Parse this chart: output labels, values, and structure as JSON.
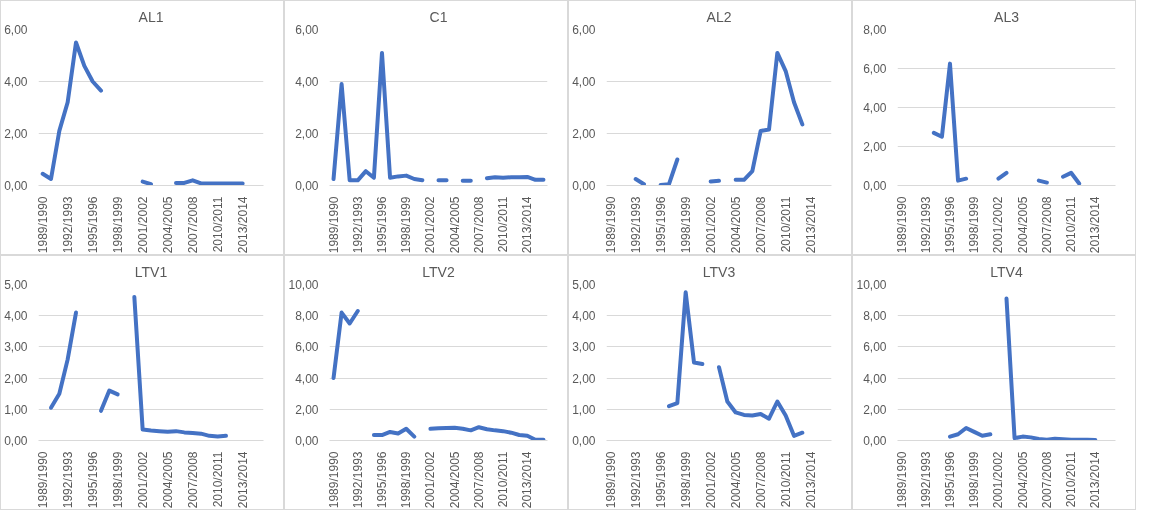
{
  "chart_data": [
    {
      "type": "line",
      "title": "AL1",
      "categories": [
        "1989/1990",
        null,
        null,
        "1992/1993",
        null,
        null,
        "1995/1996",
        null,
        null,
        "1998/1999",
        null,
        null,
        "2001/2002",
        null,
        null,
        "2004/2005",
        null,
        null,
        "2007/2008",
        null,
        null,
        "2010/2011",
        null,
        null,
        "2013/2014",
        null,
        null
      ],
      "values": [
        0.45,
        0.25,
        2.1,
        3.2,
        5.5,
        4.6,
        4.0,
        3.65,
        null,
        null,
        null,
        null,
        0.15,
        0.05,
        null,
        null,
        0.1,
        0.1,
        0.2,
        0.08,
        0.08,
        0.08,
        0.08,
        0.08,
        0.08,
        null,
        null
      ],
      "color": "#4472c4",
      "ylim": [
        0,
        6
      ],
      "yticks": [
        {
          "value": 0,
          "label": "0,00"
        },
        {
          "value": 2,
          "label": "2,00"
        },
        {
          "value": 4,
          "label": "4,00"
        },
        {
          "value": 6,
          "label": "6,00"
        }
      ],
      "grid": "y"
    },
    {
      "type": "line",
      "title": "C1",
      "categories": [
        "1989/1990",
        null,
        null,
        "1992/1993",
        null,
        null,
        "1995/1996",
        null,
        null,
        "1998/1999",
        null,
        null,
        "2001/2002",
        null,
        null,
        "2004/2005",
        null,
        null,
        "2007/2008",
        null,
        null,
        "2010/2011",
        null,
        null,
        "2013/2014",
        null,
        null
      ],
      "values": [
        0.25,
        3.9,
        0.2,
        0.2,
        0.55,
        0.3,
        5.1,
        0.3,
        0.35,
        0.38,
        0.25,
        0.2,
        null,
        0.2,
        0.2,
        null,
        0.18,
        0.18,
        null,
        0.28,
        0.32,
        0.3,
        0.32,
        0.32,
        0.33,
        0.22,
        0.22
      ],
      "color": "#4472c4",
      "ylim": [
        0,
        6
      ],
      "yticks": [
        {
          "value": 0,
          "label": "0,00"
        },
        {
          "value": 2,
          "label": "2,00"
        },
        {
          "value": 4,
          "label": "4,00"
        },
        {
          "value": 6,
          "label": "6,00"
        }
      ],
      "grid": "y"
    },
    {
      "type": "line",
      "title": "AL2",
      "categories": [
        "1989/1990",
        null,
        null,
        "1992/1993",
        null,
        null,
        "1995/1996",
        null,
        null,
        "1998/1999",
        null,
        null,
        "2001/2002",
        null,
        null,
        "2004/2005",
        null,
        null,
        "2007/2008",
        null,
        null,
        "2010/2011",
        null,
        null,
        "2013/2014",
        null,
        null
      ],
      "values": [
        null,
        null,
        null,
        0.25,
        0.05,
        null,
        0.02,
        0.05,
        1.0,
        null,
        null,
        null,
        0.15,
        0.18,
        null,
        0.22,
        0.22,
        0.55,
        2.1,
        2.15,
        5.1,
        4.4,
        3.2,
        2.35,
        null,
        null,
        null
      ],
      "color": "#4472c4",
      "ylim": [
        0,
        6
      ],
      "yticks": [
        {
          "value": 0,
          "label": "0,00"
        },
        {
          "value": 2,
          "label": "2,00"
        },
        {
          "value": 4,
          "label": "4,00"
        },
        {
          "value": 6,
          "label": "6,00"
        }
      ],
      "grid": "y"
    },
    {
      "type": "line",
      "title": "AL3",
      "categories": [
        "1989/1990",
        null,
        null,
        "1992/1993",
        null,
        null,
        "1995/1996",
        null,
        null,
        "1998/1999",
        null,
        null,
        "2001/2002",
        null,
        null,
        "2004/2005",
        null,
        null,
        "2007/2008",
        null,
        null,
        "2010/2011",
        null,
        null,
        "2013/2014",
        null,
        null
      ],
      "values": [
        null,
        null,
        null,
        null,
        2.7,
        2.5,
        6.25,
        0.25,
        0.35,
        null,
        null,
        null,
        0.35,
        0.65,
        null,
        null,
        null,
        0.25,
        0.15,
        null,
        0.45,
        0.65,
        0.1,
        null,
        null,
        null,
        null
      ],
      "color": "#4472c4",
      "ylim": [
        0,
        8
      ],
      "yticks": [
        {
          "value": 0,
          "label": "0,00"
        },
        {
          "value": 2,
          "label": "2,00"
        },
        {
          "value": 4,
          "label": "4,00"
        },
        {
          "value": 6,
          "label": "6,00"
        },
        {
          "value": 8,
          "label": "8,00"
        }
      ],
      "grid": "y"
    },
    {
      "type": "line",
      "title": "LTV1",
      "categories": [
        "1989/1990",
        null,
        null,
        "1992/1993",
        null,
        null,
        "1995/1996",
        null,
        null,
        "1998/1999",
        null,
        null,
        "2001/2002",
        null,
        null,
        "2004/2005",
        null,
        null,
        "2007/2008",
        null,
        null,
        "2010/2011",
        null,
        null,
        "2013/2014",
        null,
        null
      ],
      "values": [
        null,
        1.05,
        1.5,
        2.6,
        4.1,
        null,
        null,
        0.95,
        1.6,
        1.48,
        null,
        4.6,
        0.35,
        0.32,
        0.3,
        0.28,
        0.3,
        0.26,
        0.24,
        0.22,
        0.15,
        0.13,
        0.15,
        null,
        null,
        null,
        null
      ],
      "color": "#4472c4",
      "ylim": [
        0,
        5
      ],
      "yticks": [
        {
          "value": 0,
          "label": "0,00"
        },
        {
          "value": 1,
          "label": "1,00"
        },
        {
          "value": 2,
          "label": "2,00"
        },
        {
          "value": 3,
          "label": "3,00"
        },
        {
          "value": 4,
          "label": "4,00"
        },
        {
          "value": 5,
          "label": "5,00"
        }
      ],
      "grid": "y"
    },
    {
      "type": "line",
      "title": "LTV2",
      "categories": [
        "1989/1990",
        null,
        null,
        "1992/1993",
        null,
        null,
        "1995/1996",
        null,
        null,
        "1998/1999",
        null,
        null,
        "2001/2002",
        null,
        null,
        "2004/2005",
        null,
        null,
        "2007/2008",
        null,
        null,
        "2010/2011",
        null,
        null,
        "2013/2014",
        null,
        null
      ],
      "values": [
        4.0,
        8.2,
        7.5,
        8.3,
        null,
        0.35,
        0.35,
        0.55,
        0.45,
        0.75,
        0.25,
        null,
        0.75,
        0.78,
        0.8,
        0.82,
        0.75,
        0.65,
        0.85,
        0.72,
        0.65,
        0.6,
        0.5,
        0.35,
        0.3,
        0.05,
        0.05
      ],
      "color": "#4472c4",
      "ylim": [
        0,
        10
      ],
      "yticks": [
        {
          "value": 0,
          "label": "0,00"
        },
        {
          "value": 2,
          "label": "2,00"
        },
        {
          "value": 4,
          "label": "4,00"
        },
        {
          "value": 6,
          "label": "6,00"
        },
        {
          "value": 8,
          "label": "8,00"
        },
        {
          "value": 10,
          "label": "10,00"
        }
      ],
      "grid": "y"
    },
    {
      "type": "line",
      "title": "LTV3",
      "categories": [
        "1989/1990",
        null,
        null,
        "1992/1993",
        null,
        null,
        "1995/1996",
        null,
        null,
        "1998/1999",
        null,
        null,
        "2001/2002",
        null,
        null,
        "2004/2005",
        null,
        null,
        "2007/2008",
        null,
        null,
        "2010/2011",
        null,
        null,
        "2013/2014",
        null,
        null
      ],
      "values": [
        null,
        null,
        null,
        null,
        null,
        null,
        null,
        1.1,
        1.2,
        4.75,
        2.5,
        2.45,
        null,
        2.35,
        1.25,
        0.9,
        0.82,
        0.8,
        0.85,
        0.7,
        1.25,
        0.8,
        0.15,
        0.25,
        null,
        null,
        null
      ],
      "color": "#4472c4",
      "ylim": [
        0,
        5
      ],
      "yticks": [
        {
          "value": 0,
          "label": "0,00"
        },
        {
          "value": 1,
          "label": "1,00"
        },
        {
          "value": 2,
          "label": "2,00"
        },
        {
          "value": 3,
          "label": "3,00"
        },
        {
          "value": 4,
          "label": "4,00"
        },
        {
          "value": 5,
          "label": "5,00"
        }
      ],
      "grid": "y"
    },
    {
      "type": "line",
      "title": "LTV4",
      "categories": [
        "1989/1990",
        null,
        null,
        "1992/1993",
        null,
        null,
        "1995/1996",
        null,
        null,
        "1998/1999",
        null,
        null,
        "2001/2002",
        null,
        null,
        "2004/2005",
        null,
        null,
        "2007/2008",
        null,
        null,
        "2010/2011",
        null,
        null,
        "2013/2014",
        null,
        null
      ],
      "values": [
        null,
        null,
        null,
        null,
        null,
        null,
        0.25,
        0.4,
        0.8,
        0.55,
        0.3,
        0.4,
        null,
        9.1,
        0.15,
        0.25,
        0.2,
        0.1,
        0.05,
        0.12,
        0.08,
        0.05,
        0.05,
        0.05,
        0.03,
        null,
        null
      ],
      "color": "#4472c4",
      "ylim": [
        0,
        10
      ],
      "yticks": [
        {
          "value": 0,
          "label": "0,00"
        },
        {
          "value": 2,
          "label": "2,00"
        },
        {
          "value": 4,
          "label": "4,00"
        },
        {
          "value": 6,
          "label": "6,00"
        },
        {
          "value": 8,
          "label": "8,00"
        },
        {
          "value": 10,
          "label": "10,00"
        }
      ],
      "grid": "y"
    }
  ]
}
